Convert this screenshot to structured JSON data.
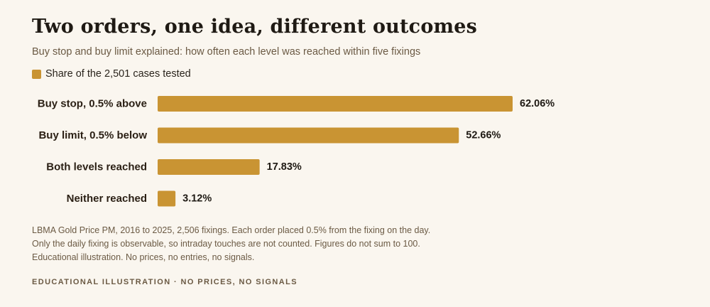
{
  "header": {
    "title": "Two orders, one idea, different outcomes",
    "subtitle": "Buy stop and buy limit explained: how often each level was reached within five fixings"
  },
  "legend": {
    "label": "Share of the 2,501 cases tested"
  },
  "colors": {
    "bar": "#c99433",
    "label": "#2a1f14",
    "value": "#1f1a14"
  },
  "chart_data": {
    "type": "bar",
    "orientation": "horizontal",
    "categories": [
      "Buy stop, 0.5% above",
      "Buy limit, 0.5% below",
      "Both levels reached",
      "Neither reached"
    ],
    "series": [
      {
        "name": "Share of the 2,501 cases tested",
        "values": [
          62.06,
          52.66,
          17.83,
          3.12
        ]
      }
    ],
    "value_labels": [
      "62.06%",
      "52.66%",
      "17.83%",
      "3.12%"
    ],
    "unit": "%",
    "xlim": [
      0,
      100
    ],
    "grid": false,
    "legend_position": "top-left"
  },
  "notes": {
    "line1": "LBMA Gold Price PM, 2016 to 2025, 2,506 fixings. Each order placed 0.5% from the fixing on the day.",
    "line2": "Only the daily fixing is observable, so intraday touches are not counted. Figures do not sum to 100.",
    "line3": "Educational illustration. No prices, no entries, no signals."
  },
  "footer": {
    "text": "EDUCATIONAL ILLUSTRATION · NO PRICES, NO SIGNALS"
  }
}
